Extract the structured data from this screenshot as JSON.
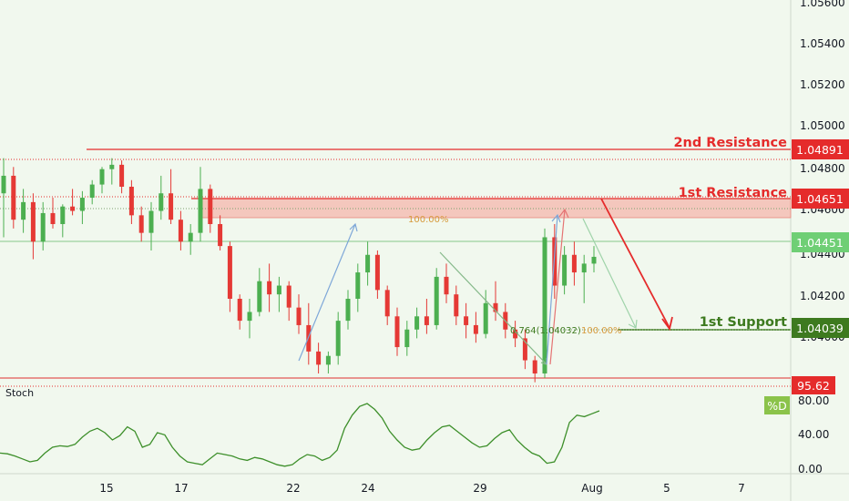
{
  "chart_data": {
    "type": "candlestick",
    "price_axis": {
      "ticks": [
        "1.05600",
        "1.05400",
        "1.05200",
        "1.05000",
        "1.04800",
        "1.04600",
        "1.04400",
        "1.04200",
        "1.04000"
      ],
      "ylim": [
        1.0392,
        1.0562
      ]
    },
    "x_axis": {
      "ticks": [
        "15",
        "17",
        "22",
        "24",
        "29",
        "Aug",
        "5",
        "7"
      ]
    },
    "levels": {
      "second_resistance": {
        "label": "2nd Resistance",
        "price": "1.04891",
        "color": "#e52b2b"
      },
      "first_resistance": {
        "label": "1st Resistance",
        "price": "1.04651",
        "color": "#e52b2b"
      },
      "first_support": {
        "label": "1st Support",
        "price": "1.04039",
        "color": "#3d7a1f"
      },
      "current_price": {
        "label": "1.04451",
        "color": "#6fcf75"
      }
    },
    "fib_labels": {
      "resistance_ext": "100.00%",
      "support_retrace": "0.764(1.04032)",
      "support_ext": "100.00%"
    },
    "candles_ohlc": [
      [
        1.0474,
        1.049,
        1.0454,
        1.0482
      ],
      [
        1.0482,
        1.0486,
        1.0458,
        1.0462
      ],
      [
        1.0462,
        1.0476,
        1.0456,
        1.047
      ],
      [
        1.047,
        1.0474,
        1.0444,
        1.0452
      ],
      [
        1.0452,
        1.047,
        1.0448,
        1.0465
      ],
      [
        1.0465,
        1.0472,
        1.0458,
        1.046
      ],
      [
        1.046,
        1.0469,
        1.0454,
        1.0468
      ],
      [
        1.0468,
        1.0476,
        1.0464,
        1.0466
      ],
      [
        1.0466,
        1.0475,
        1.046,
        1.0472
      ],
      [
        1.0472,
        1.048,
        1.0469,
        1.0478
      ],
      [
        1.0478,
        1.0486,
        1.0474,
        1.0485
      ],
      [
        1.0485,
        1.049,
        1.0478,
        1.0487
      ],
      [
        1.0487,
        1.0489,
        1.0474,
        1.0477
      ],
      [
        1.0477,
        1.048,
        1.046,
        1.0464
      ],
      [
        1.0464,
        1.0468,
        1.0452,
        1.0456
      ],
      [
        1.0456,
        1.047,
        1.0448,
        1.0466
      ],
      [
        1.0466,
        1.0482,
        1.0462,
        1.0474
      ],
      [
        1.0474,
        1.0485,
        1.046,
        1.0462
      ],
      [
        1.0462,
        1.0466,
        1.0448,
        1.0452
      ],
      [
        1.0452,
        1.046,
        1.0446,
        1.0456
      ],
      [
        1.0456,
        1.0486,
        1.0452,
        1.0476
      ],
      [
        1.0476,
        1.0478,
        1.0456,
        1.046
      ],
      [
        1.046,
        1.0464,
        1.0448,
        1.045
      ],
      [
        1.045,
        1.0452,
        1.042,
        1.0426
      ],
      [
        1.0426,
        1.0428,
        1.0412,
        1.0416
      ],
      [
        1.0416,
        1.0426,
        1.0408,
        1.042
      ],
      [
        1.042,
        1.044,
        1.0418,
        1.0434
      ],
      [
        1.0434,
        1.0442,
        1.042,
        1.0428
      ],
      [
        1.0428,
        1.0436,
        1.042,
        1.0432
      ],
      [
        1.0432,
        1.0434,
        1.0416,
        1.0422
      ],
      [
        1.0422,
        1.0428,
        1.041,
        1.0414
      ],
      [
        1.0414,
        1.0424,
        1.0396,
        1.0402
      ],
      [
        1.0402,
        1.0406,
        1.0392,
        1.0396
      ],
      [
        1.0396,
        1.0402,
        1.0392,
        1.04
      ],
      [
        1.04,
        1.042,
        1.0396,
        1.0416
      ],
      [
        1.0416,
        1.043,
        1.0412,
        1.0426
      ],
      [
        1.0426,
        1.0442,
        1.042,
        1.0438
      ],
      [
        1.0438,
        1.0452,
        1.0432,
        1.0446
      ],
      [
        1.0446,
        1.0448,
        1.0426,
        1.043
      ],
      [
        1.043,
        1.0432,
        1.0414,
        1.0418
      ],
      [
        1.0418,
        1.0422,
        1.04,
        1.0404
      ],
      [
        1.0404,
        1.0416,
        1.04,
        1.0412
      ],
      [
        1.0412,
        1.0422,
        1.0408,
        1.0418
      ],
      [
        1.0418,
        1.0426,
        1.041,
        1.0414
      ],
      [
        1.0414,
        1.044,
        1.0412,
        1.0436
      ],
      [
        1.0436,
        1.0442,
        1.0424,
        1.0428
      ],
      [
        1.0428,
        1.0432,
        1.0414,
        1.0418
      ],
      [
        1.0418,
        1.0424,
        1.0408,
        1.0414
      ],
      [
        1.0414,
        1.042,
        1.0406,
        1.041
      ],
      [
        1.041,
        1.043,
        1.0408,
        1.0424
      ],
      [
        1.0424,
        1.0434,
        1.0416,
        1.042
      ],
      [
        1.042,
        1.0424,
        1.0408,
        1.0412
      ],
      [
        1.0412,
        1.0416,
        1.0404,
        1.0408
      ],
      [
        1.0408,
        1.0412,
        1.0394,
        1.0398
      ],
      [
        1.0398,
        1.04,
        1.0388,
        1.0392
      ],
      [
        1.0392,
        1.0458,
        1.039,
        1.0454
      ],
      [
        1.0454,
        1.046,
        1.0426,
        1.0432
      ],
      [
        1.0432,
        1.045,
        1.0428,
        1.0446
      ],
      [
        1.0446,
        1.0452,
        1.0432,
        1.0438
      ],
      [
        1.0438,
        1.0446,
        1.0424,
        1.0442
      ],
      [
        1.0442,
        1.045,
        1.0438,
        1.04451
      ]
    ],
    "stochastic": {
      "title": "Stoch",
      "legend": "%D",
      "ticks": [
        "80.00",
        "40.00",
        "0.00"
      ],
      "ylim": [
        0,
        100
      ],
      "overbought_value": "95.62",
      "d_values": [
        22,
        21,
        18,
        14,
        10,
        12,
        22,
        30,
        32,
        31,
        34,
        44,
        52,
        56,
        50,
        40,
        46,
        58,
        52,
        30,
        34,
        50,
        47,
        30,
        18,
        10,
        8,
        6,
        14,
        22,
        20,
        18,
        14,
        12,
        16,
        14,
        10,
        6,
        4,
        6,
        14,
        20,
        18,
        12,
        16,
        26,
        56,
        74,
        86,
        90,
        82,
        70,
        52,
        40,
        30,
        26,
        28,
        40,
        50,
        58,
        60,
        52,
        44,
        36,
        30,
        32,
        42,
        50,
        54,
        40,
        30,
        22,
        18,
        8,
        10,
        30,
        64,
        74,
        72,
        76,
        80
      ]
    }
  }
}
